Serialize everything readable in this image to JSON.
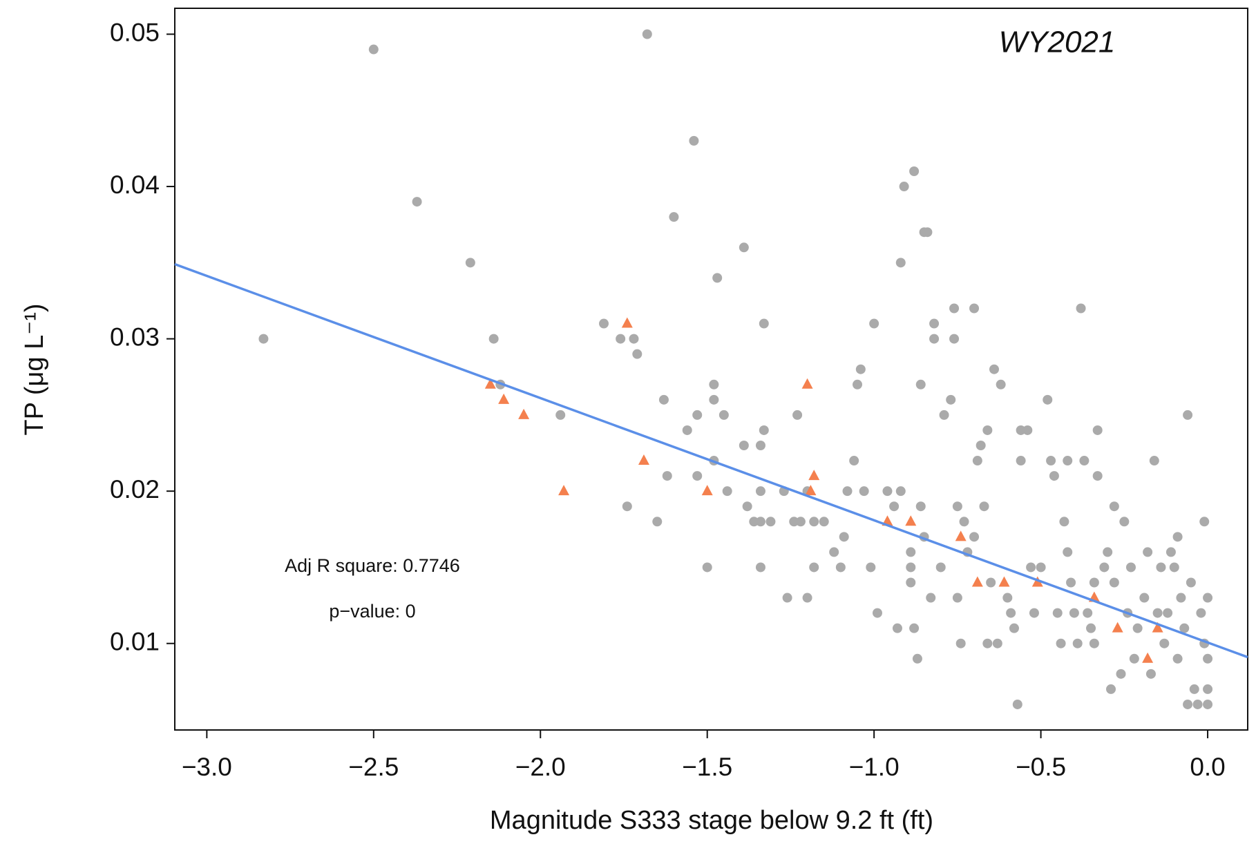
{
  "chart_data": {
    "type": "scatter",
    "xlabel": "Magnitude S333 stage below 9.2 ft (ft)",
    "ylabel": "TP (μg L⁻¹)",
    "annotations": [
      "WY2021",
      "Adj R square: 0.7746",
      "p−value: 0"
    ],
    "annotation_color": "#f4804e",
    "xlim": [
      -3.096,
      0.12
    ],
    "ylim": [
      0.00432,
      0.0517
    ],
    "xticks": [
      {
        "value": -3,
        "label": "−3.0"
      },
      {
        "value": -2.5,
        "label": "−2.5"
      },
      {
        "value": -2,
        "label": "−2.0"
      },
      {
        "value": -1.5,
        "label": "−1.5"
      },
      {
        "value": -1,
        "label": "−1.0"
      },
      {
        "value": -0.5,
        "label": "−0.5"
      },
      {
        "value": 0,
        "label": "0.0"
      }
    ],
    "yticks": [
      0.01,
      0.02,
      0.03,
      0.04,
      0.05
    ],
    "grid": false,
    "series": [
      {
        "color": "#aaaaaa",
        "marker": "circle",
        "x": [
          -2.83,
          -2.5,
          -2.37,
          -2.21,
          -2.14,
          -2.12,
          -1.94,
          -1.81,
          -1.76,
          -1.74,
          -1.72,
          -1.71,
          -1.68,
          -1.65,
          -1.63,
          -1.62,
          -1.6,
          -1.56,
          -1.54,
          -1.53,
          -1.53,
          -1.5,
          -1.48,
          -1.48,
          -1.48,
          -1.47,
          -1.45,
          -1.44,
          -1.39,
          -1.39,
          -1.38,
          -1.36,
          -1.34,
          -1.34,
          -1.34,
          -1.34,
          -1.33,
          -1.33,
          -1.31,
          -1.27,
          -1.26,
          -1.24,
          -1.23,
          -1.22,
          -1.2,
          -1.2,
          -1.18,
          -1.18,
          -1.15,
          -1.12,
          -1.1,
          -1.09,
          -1.08,
          -1.06,
          -1.05,
          -1.04,
          -1.03,
          -1.01,
          -1,
          -0.99,
          -0.96,
          -0.94,
          -0.93,
          -0.92,
          -0.91,
          -0.92,
          -0.88,
          -0.89,
          -0.89,
          -0.89,
          -0.88,
          -0.87,
          -0.86,
          -0.86,
          -0.85,
          -0.84,
          -0.85,
          -0.83,
          -0.82,
          -0.82,
          -0.8,
          -0.79,
          -0.77,
          -0.76,
          -0.76,
          -0.75,
          -0.75,
          -0.74,
          -0.73,
          -0.72,
          -0.7,
          -0.7,
          -0.69,
          -0.68,
          -0.67,
          -0.66,
          -0.66,
          -0.65,
          -0.64,
          -0.62,
          -0.63,
          -0.6,
          -0.59,
          -0.58,
          -0.57,
          -0.56,
          -0.56,
          -0.54,
          -0.53,
          -0.52,
          -0.5,
          -0.48,
          -0.47,
          -0.46,
          -0.45,
          -0.44,
          -0.43,
          -0.42,
          -0.42,
          -0.41,
          -0.4,
          -0.39,
          -0.38,
          -0.37,
          -0.36,
          -0.35,
          -0.34,
          -0.34,
          -0.33,
          -0.33,
          -0.31,
          -0.3,
          -0.29,
          -0.28,
          -0.28,
          -0.26,
          -0.25,
          -0.24,
          -0.23,
          -0.22,
          -0.21,
          -0.19,
          -0.18,
          -0.17,
          -0.16,
          -0.15,
          -0.14,
          -0.13,
          -0.12,
          -0.11,
          -0.1,
          -0.09,
          -0.09,
          -0.08,
          -0.07,
          -0.06,
          -0.06,
          -0.05,
          -0.04,
          -0.03,
          -0.02,
          -0.01,
          -0.01,
          0,
          0,
          0,
          0
        ],
        "y": [
          0.03,
          0.049,
          0.039,
          0.035,
          0.03,
          0.027,
          0.025,
          0.031,
          0.03,
          0.019,
          0.03,
          0.029,
          0.05,
          0.018,
          0.026,
          0.021,
          0.038,
          0.024,
          0.043,
          0.025,
          0.021,
          0.015,
          0.027,
          0.026,
          0.022,
          0.034,
          0.025,
          0.02,
          0.036,
          0.023,
          0.019,
          0.018,
          0.018,
          0.023,
          0.02,
          0.015,
          0.024,
          0.031,
          0.018,
          0.02,
          0.013,
          0.018,
          0.025,
          0.018,
          0.02,
          0.013,
          0.015,
          0.018,
          0.018,
          0.016,
          0.015,
          0.017,
          0.02,
          0.022,
          0.027,
          0.028,
          0.02,
          0.015,
          0.031,
          0.012,
          0.02,
          0.019,
          0.011,
          0.035,
          0.04,
          0.02,
          0.011,
          0.016,
          0.015,
          0.014,
          0.041,
          0.009,
          0.019,
          0.027,
          0.037,
          0.037,
          0.017,
          0.013,
          0.031,
          0.03,
          0.015,
          0.025,
          0.026,
          0.032,
          0.03,
          0.019,
          0.013,
          0.01,
          0.018,
          0.016,
          0.032,
          0.017,
          0.022,
          0.023,
          0.019,
          0.024,
          0.01,
          0.014,
          0.028,
          0.027,
          0.01,
          0.013,
          0.012,
          0.011,
          0.006,
          0.024,
          0.022,
          0.024,
          0.015,
          0.012,
          0.015,
          0.026,
          0.022,
          0.021,
          0.012,
          0.01,
          0.018,
          0.016,
          0.022,
          0.014,
          0.012,
          0.01,
          0.032,
          0.022,
          0.012,
          0.011,
          0.014,
          0.01,
          0.024,
          0.021,
          0.015,
          0.016,
          0.007,
          0.014,
          0.019,
          0.008,
          0.018,
          0.012,
          0.015,
          0.009,
          0.011,
          0.013,
          0.016,
          0.008,
          0.022,
          0.012,
          0.015,
          0.01,
          0.012,
          0.016,
          0.015,
          0.017,
          0.009,
          0.013,
          0.011,
          0.025,
          0.006,
          0.014,
          0.007,
          0.006,
          0.012,
          0.01,
          0.018,
          0.013,
          0.009,
          0.007,
          0.006
        ]
      },
      {
        "color": "#f4804e",
        "marker": "triangle",
        "x": [
          -2.15,
          -2.11,
          -2.05,
          -1.93,
          -1.74,
          -1.69,
          -1.5,
          -1.2,
          -1.18,
          -1.19,
          -0.96,
          -0.89,
          -0.74,
          -0.69,
          -0.61,
          -0.51,
          -0.34,
          -0.27,
          -0.18,
          -0.15
        ],
        "y": [
          0.027,
          0.026,
          0.025,
          0.02,
          0.031,
          0.022,
          0.02,
          0.027,
          0.021,
          0.02,
          0.018,
          0.018,
          0.017,
          0.014,
          0.014,
          0.014,
          0.013,
          0.011,
          0.009,
          0.011
        ]
      }
    ],
    "fit_line": {
      "color": "#5b8fe8",
      "x": [
        -3.096,
        0.12
      ],
      "y": [
        0.0349,
        0.0091
      ]
    }
  }
}
